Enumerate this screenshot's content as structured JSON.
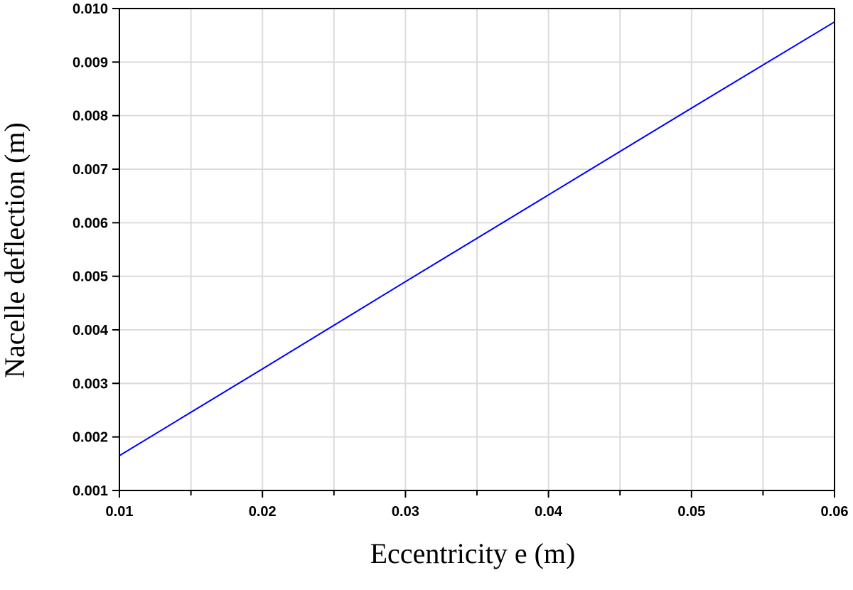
{
  "chart_data": {
    "type": "line",
    "title": "",
    "xlabel": "Eccentricity e (m)",
    "ylabel": "Nacelle deflection (m)",
    "xlim": [
      0.01,
      0.06
    ],
    "ylim": [
      0.001,
      0.01
    ],
    "x_ticks": [
      "0.01",
      "0.02",
      "0.03",
      "0.04",
      "0.05",
      "0.06"
    ],
    "y_ticks": [
      "0.001",
      "0.002",
      "0.003",
      "0.004",
      "0.005",
      "0.006",
      "0.007",
      "0.008",
      "0.009",
      "0.010"
    ],
    "grid": true,
    "legend": "none",
    "series": [
      {
        "color": "#0000ff",
        "x": [
          0.01,
          0.02,
          0.03,
          0.04,
          0.05,
          0.06
        ],
        "y": [
          0.00165,
          0.00327,
          0.0049,
          0.00652,
          0.00814,
          0.00975
        ]
      }
    ]
  }
}
